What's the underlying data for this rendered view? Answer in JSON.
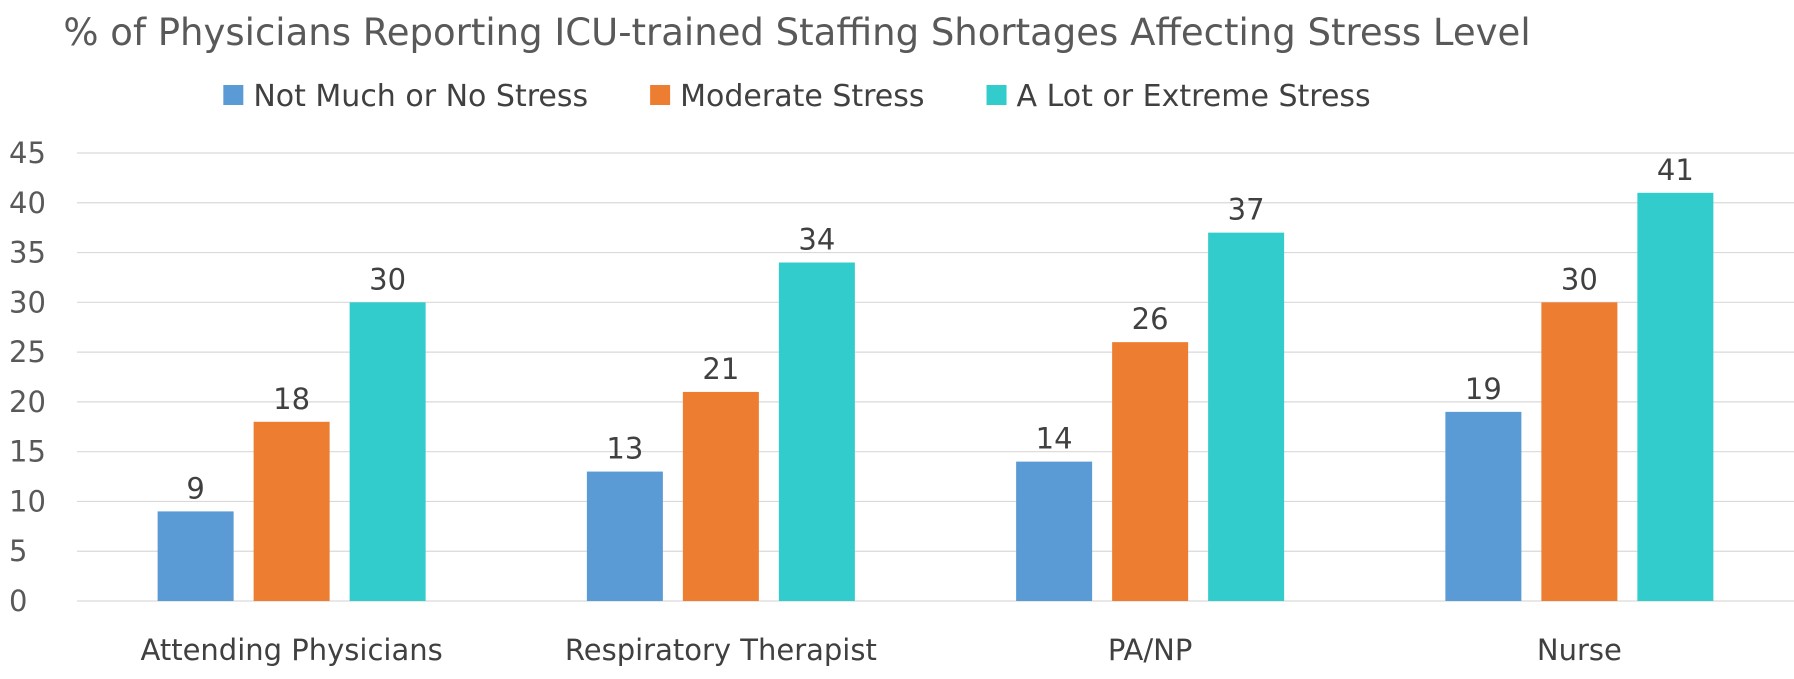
{
  "chart_data": {
    "type": "bar",
    "title": "% of Physicians Reporting ICU-trained Staffing Shortages Affecting Stress Level",
    "xlabel": "",
    "ylabel": "",
    "categories": [
      "Attending Physicians",
      "Respiratory Therapist",
      "PA/NP",
      "Nurse"
    ],
    "series": [
      {
        "name": "Not Much or No Stress",
        "color": "#5B9BD5",
        "values": [
          9,
          13,
          14,
          19
        ]
      },
      {
        "name": "Moderate Stress",
        "color": "#ED7D31",
        "values": [
          18,
          21,
          26,
          30
        ]
      },
      {
        "name": "A Lot or Extreme Stress",
        "color": "#33CCCC",
        "values": [
          30,
          34,
          37,
          41
        ]
      }
    ],
    "ylim": [
      0,
      45
    ],
    "yticks": [
      0,
      5,
      10,
      15,
      20,
      25,
      30,
      35,
      40,
      45
    ],
    "grid": true,
    "legend_position": "top",
    "data_labels": true
  }
}
